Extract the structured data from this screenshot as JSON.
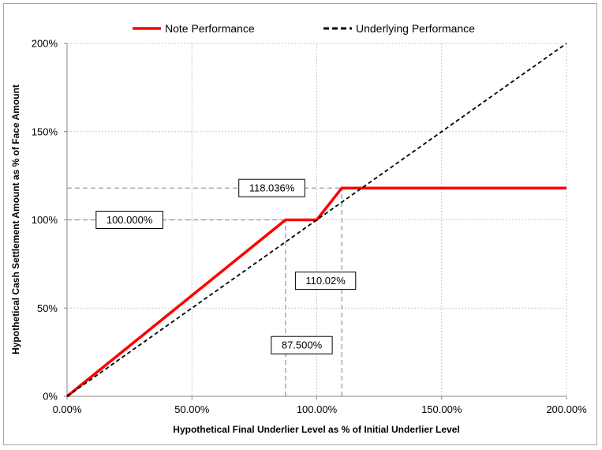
{
  "chart_data": {
    "type": "line",
    "xlabel": "Hypothetical Final Underlier Level as % of Initial Underlier Level",
    "ylabel": "Hypothetical Cash Settlement Amount as % of Face Amount",
    "xlim": [
      0,
      200
    ],
    "ylim": [
      0,
      200
    ],
    "x_ticks": [
      0,
      50,
      100,
      150,
      200
    ],
    "y_ticks": [
      0,
      50,
      100,
      150,
      200
    ],
    "x_tick_labels": [
      "0.00%",
      "50.00%",
      "100.00%",
      "150.00%",
      "200.00%"
    ],
    "y_tick_labels": [
      "0%",
      "50%",
      "100%",
      "150%",
      "200%"
    ],
    "grid": true,
    "legend_position": "top",
    "series": [
      {
        "name": "Note Performance",
        "color": "#ff0000",
        "style": "solid",
        "points": [
          [
            0,
            0
          ],
          [
            87.5,
            100
          ],
          [
            100,
            100
          ],
          [
            110.02,
            118.036
          ],
          [
            200,
            118.036
          ]
        ]
      },
      {
        "name": "Underlying Performance",
        "color": "#000000",
        "style": "dashed",
        "points": [
          [
            0,
            0
          ],
          [
            200,
            200
          ]
        ]
      }
    ],
    "reference_lines": [
      {
        "y": 118.036,
        "x_to": 110.02
      },
      {
        "y": 100,
        "x_to": 87.5
      },
      {
        "x": 87.5,
        "y_to": 100
      },
      {
        "x": 110.02,
        "y_to": 118.036
      }
    ],
    "annotations": [
      {
        "text": "118.036%",
        "x": 82,
        "y": 118.036
      },
      {
        "text": "100.000%",
        "x": 25,
        "y": 100
      },
      {
        "text": "110.02%",
        "x": 103.5,
        "y": 65.5
      },
      {
        "text": "87.500%",
        "x": 94,
        "y": 29
      }
    ]
  }
}
